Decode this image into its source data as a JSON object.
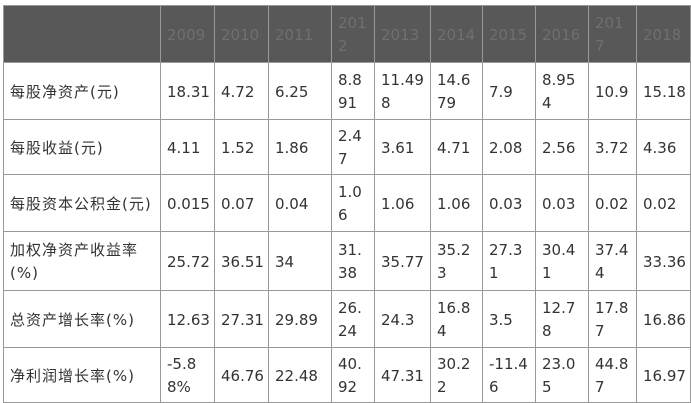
{
  "table": {
    "header": [
      "",
      "2009",
      "2010",
      "2011",
      "2012",
      "2013",
      "2014",
      "2015",
      "2016",
      "2017",
      "2018"
    ],
    "rows": [
      {
        "label": "每股净资产(元)",
        "values": [
          "18.31",
          "4.72",
          "6.25",
          "8.891",
          "11.498",
          "14.679",
          "7.9",
          "8.954",
          "10.9",
          "15.18"
        ]
      },
      {
        "label": "每股收益(元)",
        "values": [
          "4.11",
          "1.52",
          "1.86",
          "2.47",
          "3.61",
          "4.71",
          "2.08",
          "2.56",
          "3.72",
          "4.36"
        ]
      },
      {
        "label": "每股资本公积金(元)",
        "values": [
          "0.015",
          "0.07",
          "0.04",
          "1.06",
          "1.06",
          "1.06",
          "0.03",
          "0.03",
          "0.02",
          "0.02"
        ]
      },
      {
        "label": "加权净资产收益率(%)",
        "values": [
          "25.72",
          "36.51",
          "34",
          "31.38",
          "35.77",
          "35.23",
          "27.31",
          "30.41",
          "37.44",
          "33.36"
        ]
      },
      {
        "label": "总资产增长率(%)",
        "values": [
          "12.63",
          "27.31",
          "29.89",
          "26.24",
          "24.3",
          "16.84",
          "3.5",
          "12.78",
          "17.87",
          "16.86"
        ]
      },
      {
        "label": "净利润增长率(%)",
        "values": [
          "-5.88%",
          "46.76",
          "22.48",
          "40.92",
          "47.31",
          "30.22",
          "-11.46",
          "23.05",
          "44.87",
          "16.97"
        ]
      }
    ]
  }
}
